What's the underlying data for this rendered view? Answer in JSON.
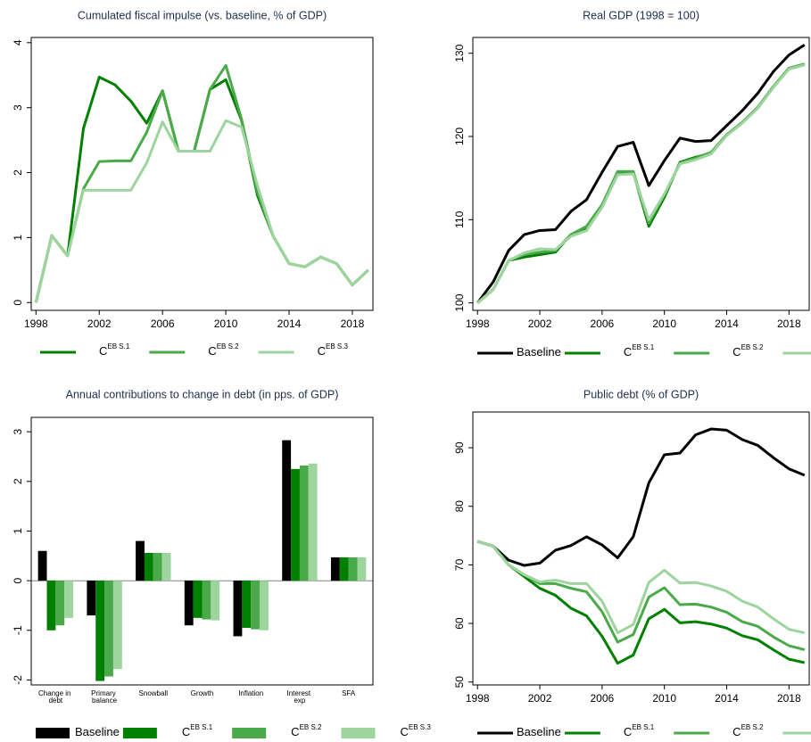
{
  "chart_data": [
    {
      "type": "line",
      "title": "Cumulated fiscal impulse (vs. baseline, % of GDP)",
      "x": [
        1998,
        1999,
        2000,
        2001,
        2002,
        2003,
        2004,
        2005,
        2006,
        2007,
        2008,
        2009,
        2010,
        2011,
        2012,
        2013,
        2014,
        2015,
        2016,
        2017,
        2018,
        2019
      ],
      "series": [
        {
          "name": "C",
          "superscript": "EB S.1",
          "color": "#008000",
          "values": [
            0,
            1.03,
            0.72,
            2.68,
            3.47,
            3.35,
            3.1,
            2.76,
            3.26,
            2.33,
            2.33,
            3.28,
            3.43,
            2.8,
            1.65,
            1.02,
            0.6,
            0.55,
            0.7,
            0.6,
            0.27,
            0.5
          ]
        },
        {
          "name": "C",
          "superscript": "EB S.2",
          "color": "#4aaa4a",
          "values": [
            0,
            1.03,
            0.72,
            1.75,
            2.17,
            2.18,
            2.18,
            2.62,
            3.26,
            2.33,
            2.33,
            3.28,
            3.65,
            2.82,
            1.7,
            1.02,
            0.6,
            0.55,
            0.7,
            0.6,
            0.27,
            0.5
          ]
        },
        {
          "name": "C",
          "superscript": "EB S.3",
          "color": "#9ed49e",
          "values": [
            0,
            1.03,
            0.72,
            1.73,
            1.73,
            1.73,
            1.73,
            2.15,
            2.78,
            2.33,
            2.33,
            2.33,
            2.8,
            2.7,
            1.8,
            1.02,
            0.6,
            0.55,
            0.7,
            0.6,
            0.27,
            0.5
          ]
        }
      ],
      "xlim": [
        1997.7,
        2019.3
      ],
      "xticks": [
        1998,
        2002,
        2006,
        2010,
        2014,
        2018
      ],
      "ylim": [
        -0.12,
        4.08
      ],
      "yticks": [
        0,
        1,
        2,
        3,
        4
      ]
    },
    {
      "type": "line",
      "title": "Real GDP (1998 = 100)",
      "x": [
        1998,
        1999,
        2000,
        2001,
        2002,
        2003,
        2004,
        2005,
        2006,
        2007,
        2008,
        2009,
        2010,
        2011,
        2012,
        2013,
        2014,
        2015,
        2016,
        2017,
        2018,
        2019
      ],
      "series": [
        {
          "name": "Baseline",
          "color": "#000000",
          "values": [
            100,
            102.5,
            106.3,
            108.2,
            108.7,
            108.8,
            111,
            112.4,
            115.7,
            118.8,
            119.3,
            114.1,
            117.1,
            119.8,
            119.4,
            119.5,
            121.3,
            123.1,
            125.2,
            127.8,
            129.8,
            131
          ]
        },
        {
          "name": "C",
          "superscript": "EB S.1",
          "color": "#008000",
          "values": [
            100,
            101.6,
            105.1,
            105.5,
            105.8,
            106.1,
            108.2,
            109,
            111.6,
            115.7,
            115.7,
            109.2,
            112.7,
            116.9,
            117.5,
            118,
            120.2,
            121.7,
            123.5,
            126,
            128.2,
            128.7
          ]
        },
        {
          "name": "C",
          "superscript": "EB S.2",
          "color": "#4aaa4a",
          "values": [
            100,
            101.6,
            105.1,
            105.8,
            106.1,
            106.3,
            108.2,
            109.2,
            111.8,
            115.8,
            115.8,
            109.6,
            113,
            116.8,
            117.4,
            118.1,
            120.2,
            121.7,
            123.5,
            126,
            128.2,
            128.7
          ]
        },
        {
          "name": "C",
          "superscript": "EB S.3",
          "color": "#9ed49e",
          "values": [
            100,
            101.6,
            105.1,
            106,
            106.5,
            106.4,
            108,
            108.7,
            111.5,
            115.4,
            115.5,
            110,
            113.1,
            116.7,
            117.2,
            117.9,
            120.1,
            121.6,
            123.4,
            125.9,
            128.1,
            128.6
          ]
        }
      ],
      "xlim": [
        1997.7,
        2019.3
      ],
      "xticks": [
        1998,
        2002,
        2006,
        2010,
        2014,
        2018
      ],
      "ylim": [
        99.1,
        131.9
      ],
      "yticks": [
        100,
        110,
        120,
        130
      ]
    },
    {
      "type": "bar",
      "title": "Annual contributions to change in debt (in pps. of GDP)",
      "categories": [
        "Change in debt",
        "Primary balance",
        "Snowball",
        "Growth",
        "Inflation",
        "Interest exp",
        "SFA"
      ],
      "series": [
        {
          "name": "Baseline",
          "color": "#000000",
          "values": [
            0.6,
            -0.7,
            0.8,
            -0.9,
            -1.12,
            2.83,
            0.47
          ]
        },
        {
          "name": "C",
          "superscript": "EB S.1",
          "color": "#008000",
          "values": [
            -1.0,
            -2.02,
            0.56,
            -0.75,
            -0.95,
            2.25,
            0.47
          ]
        },
        {
          "name": "C",
          "superscript": "EB S.2",
          "color": "#4aaa4a",
          "values": [
            -0.9,
            -1.93,
            0.56,
            -0.78,
            -0.98,
            2.32,
            0.47
          ]
        },
        {
          "name": "C",
          "superscript": "EB S.3",
          "color": "#9ed49e",
          "values": [
            -0.75,
            -1.78,
            0.56,
            -0.8,
            -1.0,
            2.36,
            0.47
          ]
        }
      ],
      "ylim": [
        -2.1,
        3.29
      ],
      "yticks": [
        -2,
        -1,
        0,
        1,
        2,
        3
      ]
    },
    {
      "type": "line",
      "title": "Public debt (% of GDP)",
      "x": [
        1998,
        1999,
        2000,
        2001,
        2002,
        2003,
        2004,
        2005,
        2006,
        2007,
        2008,
        2009,
        2010,
        2011,
        2012,
        2013,
        2014,
        2015,
        2016,
        2017,
        2018,
        2019
      ],
      "series": [
        {
          "name": "Baseline",
          "color": "#000000",
          "values": [
            74,
            73.2,
            70.8,
            69.9,
            70.3,
            72.5,
            73.3,
            74.8,
            73.4,
            71.2,
            74.8,
            84,
            88.8,
            89.1,
            92.2,
            93.2,
            93,
            91.4,
            90.4,
            88.3,
            86.4,
            85.3
          ]
        },
        {
          "name": "C",
          "superscript": "EB S.1",
          "color": "#008000",
          "values": [
            74,
            73.2,
            70,
            68,
            66,
            64.8,
            62.6,
            61.3,
            57.8,
            53.2,
            54.6,
            60.8,
            62.4,
            60.1,
            60.3,
            59.9,
            59.2,
            57.9,
            57.2,
            55.5,
            53.9,
            53.3
          ]
        },
        {
          "name": "C",
          "superscript": "EB S.2",
          "color": "#4aaa4a",
          "values": [
            74,
            73.2,
            70,
            68.3,
            66.8,
            66.8,
            66,
            65.4,
            62,
            56.8,
            58.1,
            64.5,
            66.1,
            63.2,
            63.3,
            62.8,
            61.9,
            60.3,
            59.5,
            57.7,
            56.2,
            55.5
          ]
        },
        {
          "name": "C",
          "superscript": "EB S.3",
          "color": "#9ed49e",
          "values": [
            74,
            73.2,
            70,
            68.3,
            67.1,
            67.4,
            66.8,
            66.8,
            63.8,
            58.4,
            59.8,
            67,
            69.1,
            66.9,
            67,
            66.4,
            65.5,
            63.8,
            62.8,
            60.8,
            59,
            58.4
          ]
        }
      ],
      "xlim": [
        1997.7,
        2019.3
      ],
      "xticks": [
        1998,
        2002,
        2006,
        2010,
        2014,
        2018
      ],
      "ylim": [
        49.5,
        96.1
      ],
      "yticks": [
        50,
        60,
        70,
        80,
        90
      ]
    }
  ]
}
